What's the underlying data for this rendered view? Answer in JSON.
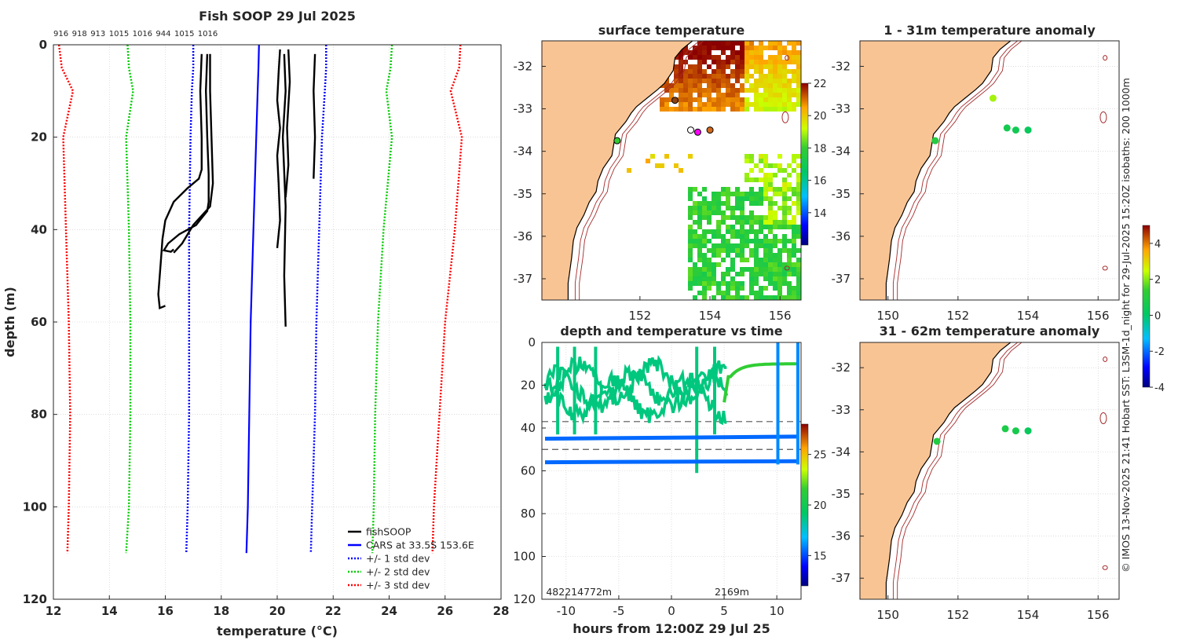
{
  "figure": {
    "credit": "© IMOS 13-Nov-2025 21:41 Hobart SST: L3SM-1d_night for 29-Jul-2025 15:20Z isobaths: 200  1000m"
  },
  "chart_data": [
    {
      "id": "profile",
      "type": "line",
      "title": "Fish SOOP 29 Jul 2025",
      "xlabel": "temperature (°C)",
      "ylabel": "depth (m)",
      "xlim": [
        12,
        28
      ],
      "ylim": [
        120,
        0
      ],
      "xticks": [
        12,
        14,
        16,
        18,
        20,
        22,
        24,
        26,
        28
      ],
      "yticks": [
        0,
        20,
        40,
        60,
        80,
        100,
        120
      ],
      "grid": true,
      "legend_position": "bottom-right",
      "top_labels": [
        "916",
        "918",
        "913",
        "1015",
        "1016",
        "944",
        "1015",
        "1016"
      ],
      "colors": {
        "fishSOOP": "#000000",
        "CARS": "#0000ff",
        "std1": "#0000ff",
        "std2": "#00cc00",
        "std3": "#ff0000"
      },
      "depths": [
        0,
        5,
        10,
        20,
        40,
        60,
        80,
        100,
        110
      ],
      "cars": [
        19.35,
        19.33,
        19.3,
        19.25,
        19.15,
        19.05,
        19.0,
        18.95,
        18.9
      ],
      "std1_low": [
        17.0,
        17.0,
        16.95,
        16.9,
        16.85,
        16.85,
        16.85,
        16.8,
        16.75
      ],
      "std1_high": [
        21.75,
        21.75,
        21.7,
        21.6,
        21.5,
        21.4,
        21.35,
        21.25,
        21.2
      ],
      "std2_low": [
        14.65,
        14.7,
        14.85,
        14.6,
        14.7,
        14.75,
        14.75,
        14.7,
        14.6
      ],
      "std2_high": [
        24.1,
        24.05,
        23.9,
        24.1,
        23.8,
        23.6,
        23.5,
        23.45,
        23.4
      ],
      "std3_low": [
        12.2,
        12.3,
        12.7,
        12.35,
        12.45,
        12.55,
        12.6,
        12.55,
        12.5
      ],
      "std3_high": [
        26.55,
        26.5,
        26.2,
        26.6,
        26.35,
        26.0,
        25.8,
        25.6,
        25.55
      ],
      "fish_traces": [
        {
          "temps": [
            17.3,
            17.25,
            17.3,
            17.3,
            17.2,
            16.8,
            16.3,
            16.0,
            15.9,
            15.85,
            15.8,
            15.75,
            15.8,
            16.0
          ],
          "depths": [
            2,
            10,
            20,
            27,
            29,
            31,
            34,
            38,
            42,
            46,
            50,
            54,
            57,
            56.5
          ]
        },
        {
          "temps": [
            17.5,
            17.45,
            17.5,
            17.55,
            17.55,
            17.5,
            17.1,
            16.5,
            16.1,
            15.95,
            16.2,
            16.3
          ],
          "depths": [
            2,
            10,
            20,
            28,
            34,
            36,
            39,
            41,
            43,
            44.5,
            44.8,
            44.3
          ]
        },
        {
          "temps": [
            17.6,
            17.6,
            17.65,
            17.7,
            17.6,
            17.0,
            16.6,
            16.3
          ],
          "depths": [
            2,
            10,
            20,
            30,
            35,
            39,
            43,
            45
          ]
        },
        {
          "temps": [
            20.1,
            20.05,
            20.0,
            20.1,
            20.0,
            20.05,
            20.1,
            20.0
          ],
          "depths": [
            1,
            6,
            12,
            18,
            24,
            30,
            38,
            44
          ]
        },
        {
          "temps": [
            20.25,
            20.3,
            20.2,
            20.3,
            20.25,
            20.3
          ],
          "depths": [
            2,
            10,
            20,
            35,
            50,
            61
          ]
        },
        {
          "temps": [
            20.4,
            20.45,
            20.35,
            20.4,
            20.3
          ],
          "depths": [
            1,
            8,
            18,
            26,
            33
          ]
        },
        {
          "temps": [
            21.35,
            21.3,
            21.35,
            21.3
          ],
          "depths": [
            2,
            10,
            20,
            29
          ]
        }
      ],
      "legend": [
        "fishSOOP",
        "CARS at 33.5S 153.6E",
        "+/- 1 std dev",
        "+/- 2 std dev",
        "+/- 3 std dev"
      ]
    },
    {
      "id": "sst_map",
      "type": "heatmap",
      "title": "surface temperature",
      "xlim": [
        149.2,
        156.6
      ],
      "ylim": [
        -37.5,
        -31.4
      ],
      "xticks": [
        152,
        154,
        156
      ],
      "xtick_labels": [
        "152",
        "154",
        "156"
      ],
      "yticks": [
        -32,
        -33,
        -34,
        -35,
        -36,
        -37
      ],
      "ytick_labels": [
        "-32",
        "-33",
        "-34",
        "-35",
        "-36",
        "-37"
      ],
      "colorbar_range": [
        12,
        22
      ],
      "colorbar_ticks": [
        14,
        16,
        18,
        20,
        22
      ],
      "colorbar_tick_labels": [
        "14",
        "16",
        "18",
        "20",
        "22"
      ],
      "stations": [
        {
          "lon": 151.35,
          "lat": -33.75
        },
        {
          "lon": 153.0,
          "lat": -32.8
        },
        {
          "lon": 153.45,
          "lat": -33.5
        },
        {
          "lon": 153.65,
          "lat": -33.55
        },
        {
          "lon": 154.0,
          "lat": -33.5
        }
      ]
    },
    {
      "id": "time_series",
      "type": "scatter",
      "title": "depth and temperature vs time",
      "xlabel": "hours from 12:00Z 29 Jul 25",
      "xlim": [
        -12.3,
        12.3
      ],
      "ylim": [
        120,
        0
      ],
      "xticks": [
        -10,
        -5,
        0,
        5,
        10
      ],
      "xtick_labels": [
        "-10",
        "-5",
        "0",
        "5",
        "10"
      ],
      "yticks": [
        0,
        20,
        40,
        60,
        80,
        100,
        120
      ],
      "ytick_labels": [
        "0",
        "20",
        "40",
        "60",
        "80",
        "100",
        "120"
      ],
      "dashed_depths": [
        37,
        50
      ],
      "bottom_labels": [
        {
          "text": "482214772m",
          "hour": -11.9
        },
        {
          "text": "2169m",
          "hour": 4.1
        }
      ],
      "colorbar_range": [
        12,
        28
      ],
      "colorbar_ticks": [
        15,
        20,
        25
      ],
      "colorbar_tick_labels": [
        "15",
        "20",
        "25"
      ],
      "deep_lines": [
        {
          "hours": [
            -12,
            12
          ],
          "depths": [
            45,
            44
          ],
          "temp": 15.5
        },
        {
          "hours": [
            -12,
            12
          ],
          "depths": [
            56,
            55.5
          ],
          "temp": 15.5
        }
      ],
      "shallow_green": {
        "hours": [
          -12,
          -10,
          -8,
          -6,
          -4,
          -2,
          0,
          2,
          3.5,
          5.3
        ],
        "depths": [
          25,
          10,
          18,
          14,
          16,
          25,
          20,
          22,
          28,
          30
        ],
        "temp": 18.8
      }
    },
    {
      "id": "anom_map_shallow",
      "type": "scatter",
      "title": "1 - 31m temperature anomaly",
      "xlim": [
        149.2,
        156.6
      ],
      "ylim": [
        -37.5,
        -31.4
      ],
      "xticks": [
        150,
        152,
        154,
        156
      ],
      "xtick_labels": [
        "150",
        "152",
        "154",
        "156"
      ],
      "yticks": [
        -32,
        -33,
        -34,
        -35,
        -36,
        -37
      ],
      "ytick_labels": [
        "-32",
        "-33",
        "-34",
        "-35",
        "-36",
        "-37"
      ],
      "points": [
        {
          "lon": 151.35,
          "lat": -33.75,
          "anom": 1.0
        },
        {
          "lon": 153.0,
          "lat": -32.75,
          "anom": 2.2
        },
        {
          "lon": 153.4,
          "lat": -33.45,
          "anom": 0.6
        },
        {
          "lon": 153.65,
          "lat": -33.5,
          "anom": 0.5
        },
        {
          "lon": 154.0,
          "lat": -33.5,
          "anom": 0.3
        }
      ],
      "colorbar_range": [
        -4,
        5
      ],
      "colorbar_ticks": [
        -4,
        -2,
        0,
        2,
        4
      ],
      "colorbar_tick_labels": [
        "-4",
        "-2",
        "0",
        "2",
        "4"
      ]
    },
    {
      "id": "anom_map_deep",
      "type": "scatter",
      "title": "31 - 62m temperature anomaly",
      "xlim": [
        149.2,
        156.6
      ],
      "ylim": [
        -37.5,
        -31.4
      ],
      "xticks": [
        150,
        152,
        154,
        156
      ],
      "xtick_labels": [
        "150",
        "152",
        "154",
        "156"
      ],
      "yticks": [
        -32,
        -33,
        -34,
        -35,
        -36,
        -37
      ],
      "ytick_labels": [
        "-32",
        "-33",
        "-34",
        "-35",
        "-36",
        "-37"
      ],
      "points": [
        {
          "lon": 151.4,
          "lat": -33.75,
          "anom": 1.0
        },
        {
          "lon": 153.35,
          "lat": -33.45,
          "anom": 0.8
        },
        {
          "lon": 153.65,
          "lat": -33.5,
          "anom": 0.7
        },
        {
          "lon": 154.0,
          "lat": -33.5,
          "anom": 0.3
        }
      ]
    }
  ]
}
